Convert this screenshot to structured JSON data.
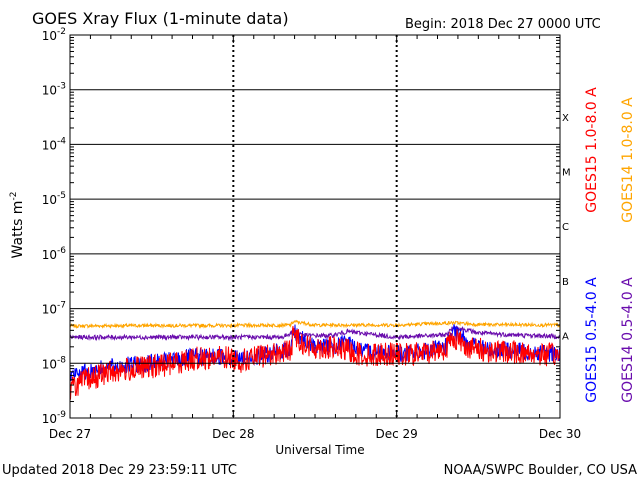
{
  "chart_data": {
    "type": "line",
    "title": "GOES Xray Flux (1-minute data)",
    "begin": "Begin:  2018 Dec 27 0000 UTC",
    "xlabel": "Universal Time",
    "ylabel": "Watts m",
    "ylabel_exp": "-2",
    "yscale": "log",
    "ylim": [
      1e-09,
      0.01
    ],
    "y_ticks": [
      {
        "base": "10",
        "exp": "-2",
        "value": 0.01
      },
      {
        "base": "10",
        "exp": "-3",
        "value": 0.001
      },
      {
        "base": "10",
        "exp": "-4",
        "value": 0.0001
      },
      {
        "base": "10",
        "exp": "-5",
        "value": 1e-05
      },
      {
        "base": "10",
        "exp": "-6",
        "value": 1e-06
      },
      {
        "base": "10",
        "exp": "-7",
        "value": 1e-07
      },
      {
        "base": "10",
        "exp": "-8",
        "value": 1e-08
      },
      {
        "base": "10",
        "exp": "-9",
        "value": 1e-09
      }
    ],
    "x_ticks": [
      {
        "label": "Dec 27",
        "day": 0
      },
      {
        "label": "Dec 28",
        "day": 1
      },
      {
        "label": "Dec 29",
        "day": 2
      },
      {
        "label": "Dec 30",
        "day": 3
      }
    ],
    "xlim": [
      0,
      3
    ],
    "flare_classes": [
      {
        "label": "X",
        "value": 0.00032
      },
      {
        "label": "M",
        "value": 3.2e-05
      },
      {
        "label": "C",
        "value": 3.2e-06
      },
      {
        "label": "B",
        "value": 3.2e-07
      },
      {
        "label": "A",
        "value": 3.2e-08
      }
    ],
    "series": [
      {
        "name": "GOES15 1.0-8.0 A",
        "color": "#ff0000",
        "x": [
          0,
          0.1,
          0.25,
          0.4,
          0.55,
          0.75,
          0.95,
          1.05,
          1.2,
          1.35,
          1.37,
          1.45,
          1.6,
          1.7,
          1.8,
          1.95,
          2.05,
          2.2,
          2.3,
          2.35,
          2.45,
          2.55,
          2.7,
          2.85,
          3.0
        ],
        "y": [
          3.5e-09,
          5e-09,
          7e-09,
          8e-09,
          9e-09,
          1.2e-08,
          1.3e-08,
          1.1e-08,
          1.4e-08,
          1.7e-08,
          3.5e-08,
          2e-08,
          1.9e-08,
          1.7e-08,
          1.4e-08,
          1.5e-08,
          1.4e-08,
          1.6e-08,
          1.9e-08,
          3e-08,
          1.9e-08,
          1.7e-08,
          1.6e-08,
          1.5e-08,
          1.4e-08
        ]
      },
      {
        "name": "GOES14 1.0-8.0 A",
        "color": "#ffa500",
        "x": [
          0,
          0.5,
          1.0,
          1.35,
          1.37,
          1.5,
          2.0,
          2.35,
          2.5,
          3.0
        ],
        "y": [
          4.8e-08,
          4.9e-08,
          4.9e-08,
          5e-08,
          5.8e-08,
          5e-08,
          5e-08,
          5.5e-08,
          5.1e-08,
          5e-08
        ]
      },
      {
        "name": "GOES15 0.5-4.0 A",
        "color": "#0000ff",
        "x": [
          0,
          0.1,
          0.25,
          0.4,
          0.55,
          0.75,
          0.95,
          1.05,
          1.2,
          1.35,
          1.37,
          1.45,
          1.6,
          1.7,
          1.8,
          1.95,
          2.05,
          2.2,
          2.3,
          2.35,
          2.45,
          2.55,
          2.7,
          2.85,
          3.0
        ],
        "y": [
          6e-09,
          7e-09,
          8.5e-09,
          9.5e-09,
          1.05e-08,
          1.3e-08,
          1.35e-08,
          1.2e-08,
          1.45e-08,
          1.8e-08,
          4e-08,
          2.2e-08,
          2e-08,
          2.4e-08,
          1.6e-08,
          1.6e-08,
          1.5e-08,
          1.7e-08,
          2e-08,
          3.6e-08,
          2.3e-08,
          1.8e-08,
          1.7e-08,
          1.6e-08,
          1.5e-08
        ]
      },
      {
        "name": "GOES14 0.5-4.0 A",
        "color": "#6a0dad",
        "x": [
          0,
          0.5,
          1.0,
          1.3,
          1.37,
          1.45,
          1.6,
          1.7,
          2.0,
          2.3,
          2.35,
          2.5,
          2.7,
          3.0
        ],
        "y": [
          3e-08,
          3e-08,
          3e-08,
          3e-08,
          3.8e-08,
          3.2e-08,
          3.2e-08,
          3.8e-08,
          3e-08,
          3.3e-08,
          4.6e-08,
          3.6e-08,
          3.3e-08,
          3.1e-08
        ]
      }
    ]
  },
  "footer": {
    "updated": "Updated 2018 Dec 29 23:59:11 UTC",
    "credit": "NOAA/SWPC Boulder, CO USA"
  }
}
